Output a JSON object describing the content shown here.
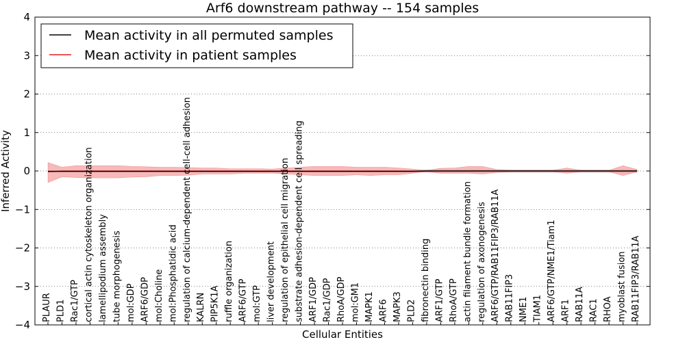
{
  "chart_data": {
    "type": "line",
    "title": "Arf6 downstream pathway -- 154 samples",
    "xlabel": "Cellular Entities",
    "ylabel": "Inferred Activity",
    "ylim": [
      -4,
      4
    ],
    "yticks": [
      -4,
      -3,
      -2,
      -1,
      0,
      1,
      2,
      3,
      4
    ],
    "ytick_labels": [
      "−4",
      "−3",
      "−2",
      "−1",
      "0",
      "1",
      "2",
      "3",
      "4"
    ],
    "grid": "horizontal dotted",
    "legend_position": "top-left",
    "colors": {
      "permuted_line": "#000000",
      "patient_line": "#e31a1c",
      "patient_band": "#f08080",
      "permuted_band": "#b0b0b0"
    },
    "categories": [
      "PLAUR",
      "PLD1",
      "Rac1/GTP",
      "cortical actin cytoskeleton organization",
      "lamellipodium assembly",
      "tube morphogenesis",
      "mol:GDP",
      "ARF6/GDP",
      "mol:Choline",
      "mol:Phosphatidic acid",
      "regulation of calcium-dependent cell-cell adhesion",
      "KALRN",
      "PIP5K1A",
      "ruffle organization",
      "ARF6/GTP",
      "mol:GTP",
      "liver development",
      "regulation of epithelial cell migration",
      "substrate adhesion-dependent cell spreading",
      "ARF1/GDP",
      "Rac1/GDP",
      "RhoA/GDP",
      "mol:GM1",
      "MAPK1",
      "ARF6",
      "MAPK3",
      "PLD2",
      "fibronectin binding",
      "ARF1/GTP",
      "RhoA/GTP",
      "actin filament bundle formation",
      "regulation of axonogenesis",
      "ARF6/GTP/RAB11FIP3/RAB11A",
      "RAB11FIP3",
      "NME1",
      "TIAM1",
      "ARF6/GTP/NME1/Tiam1",
      "ARF1",
      "RAB11A",
      "RAC1",
      "RHOA",
      "myoblast fusion",
      "RAB11FIP3/RAB11A"
    ],
    "series": [
      {
        "name": "Mean activity in all permuted samples",
        "values": [
          -0.01,
          -0.01,
          -0.01,
          -0.01,
          -0.01,
          -0.01,
          -0.01,
          -0.01,
          -0.01,
          -0.01,
          -0.01,
          -0.01,
          -0.01,
          -0.01,
          -0.01,
          -0.01,
          -0.01,
          -0.01,
          -0.01,
          -0.01,
          -0.01,
          -0.01,
          -0.01,
          -0.01,
          -0.01,
          -0.01,
          -0.01,
          0.0,
          0.0,
          0.0,
          0.0,
          0.0,
          0.0,
          0.0,
          0.0,
          0.0,
          0.0,
          0.0,
          0.0,
          0.0,
          0.0,
          0.0,
          0.0
        ],
        "band_low": [
          -0.03,
          -0.03,
          -0.03,
          -0.03,
          -0.03,
          -0.03,
          -0.03,
          -0.03,
          -0.03,
          -0.03,
          -0.03,
          -0.03,
          -0.03,
          -0.03,
          -0.03,
          -0.03,
          -0.03,
          -0.03,
          -0.03,
          -0.03,
          -0.03,
          -0.03,
          -0.03,
          -0.03,
          -0.03,
          -0.03,
          -0.03,
          -0.05,
          -0.05,
          -0.05,
          -0.05,
          -0.05,
          -0.05,
          -0.05,
          -0.05,
          -0.05,
          -0.05,
          -0.05,
          -0.05,
          -0.05,
          -0.05,
          -0.05,
          -0.05
        ],
        "band_high": [
          0.01,
          0.01,
          0.01,
          0.01,
          0.01,
          0.01,
          0.01,
          0.01,
          0.01,
          0.01,
          0.01,
          0.01,
          0.01,
          0.01,
          0.01,
          0.01,
          0.01,
          0.01,
          0.01,
          0.01,
          0.01,
          0.01,
          0.01,
          0.01,
          0.01,
          0.01,
          0.01,
          0.04,
          0.04,
          0.04,
          0.04,
          0.04,
          0.04,
          0.04,
          0.04,
          0.04,
          0.04,
          0.04,
          0.04,
          0.04,
          0.04,
          0.04,
          0.04
        ]
      },
      {
        "name": "Mean activity in patient samples",
        "values": [
          -0.02,
          0.0,
          0.0,
          0.0,
          0.0,
          0.0,
          0.0,
          0.0,
          0.0,
          0.0,
          0.0,
          0.0,
          0.0,
          0.0,
          0.0,
          0.0,
          0.0,
          0.0,
          0.0,
          0.0,
          0.0,
          0.0,
          0.0,
          0.0,
          0.0,
          0.0,
          0.0,
          0.0,
          0.0,
          0.0,
          0.0,
          0.0,
          0.0,
          0.0,
          0.0,
          0.0,
          0.0,
          0.0,
          0.0,
          0.0,
          0.0,
          0.0,
          0.0
        ],
        "band_low": [
          -0.3,
          -0.15,
          -0.17,
          -0.18,
          -0.18,
          -0.18,
          -0.16,
          -0.15,
          -0.12,
          -0.12,
          -0.11,
          -0.08,
          -0.08,
          -0.08,
          -0.06,
          -0.06,
          -0.06,
          -0.08,
          -0.1,
          -0.12,
          -0.12,
          -0.12,
          -0.1,
          -0.12,
          -0.1,
          -0.1,
          -0.06,
          -0.02,
          -0.06,
          -0.06,
          -0.06,
          -0.08,
          -0.04,
          -0.02,
          -0.02,
          -0.02,
          -0.02,
          -0.06,
          -0.02,
          -0.02,
          -0.02,
          -0.12,
          -0.02
        ],
        "band_high": [
          0.22,
          0.1,
          0.14,
          0.14,
          0.14,
          0.14,
          0.12,
          0.11,
          0.1,
          0.1,
          0.09,
          0.08,
          0.08,
          0.06,
          0.06,
          0.06,
          0.05,
          0.08,
          0.1,
          0.12,
          0.12,
          0.12,
          0.1,
          0.1,
          0.1,
          0.08,
          0.05,
          0.02,
          0.07,
          0.08,
          0.12,
          0.12,
          0.04,
          0.02,
          0.02,
          0.02,
          0.02,
          0.08,
          0.02,
          0.02,
          0.02,
          0.14,
          0.04
        ]
      }
    ]
  }
}
